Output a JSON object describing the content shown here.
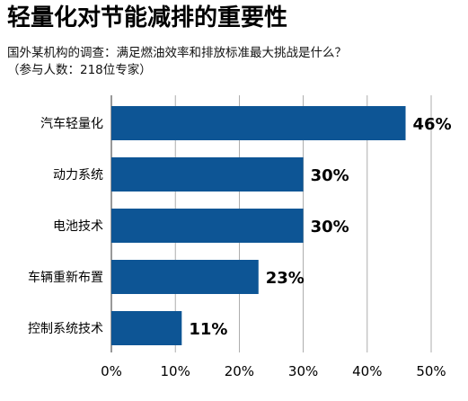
{
  "title": "轻量化对节能减排的重要性",
  "subtitle": "国外某机构的调查：满足燃油效率和排放标准最大挑战是什么？",
  "note": "（参与人数：218位专家）",
  "colors": {
    "bar": "#0d5595",
    "grid": "#999999",
    "axis": "#555555",
    "text": "#000000"
  },
  "chart_data": {
    "type": "bar",
    "orientation": "horizontal",
    "categories": [
      "汽车轻量化",
      "动力系统",
      "电池技术",
      "车辆重新布置",
      "控制系统技术"
    ],
    "values": [
      46,
      30,
      30,
      23,
      11
    ],
    "value_labels": [
      "46%",
      "30%",
      "30%",
      "23%",
      "11%"
    ],
    "xlim": [
      0,
      50
    ],
    "ticks": [
      0,
      10,
      20,
      30,
      40,
      50
    ],
    "tick_labels": [
      "0%",
      "10%",
      "20%",
      "30%",
      "40%",
      "50%"
    ],
    "grid": true
  }
}
